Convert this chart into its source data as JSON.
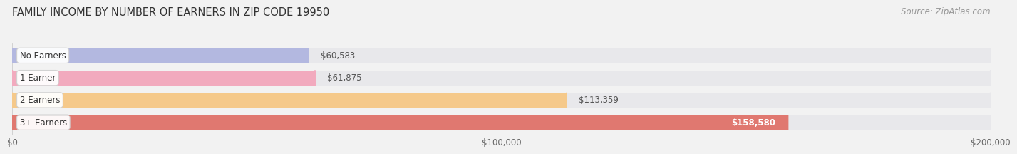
{
  "title": "FAMILY INCOME BY NUMBER OF EARNERS IN ZIP CODE 19950",
  "source": "Source: ZipAtlas.com",
  "categories": [
    "No Earners",
    "1 Earner",
    "2 Earners",
    "3+ Earners"
  ],
  "values": [
    60583,
    61875,
    113359,
    158580
  ],
  "bar_colors": [
    "#b3b8e0",
    "#f2aabe",
    "#f5c98a",
    "#e07870"
  ],
  "bar_bg_color": "#e8e8eb",
  "label_colors": [
    "#444444",
    "#444444",
    "#444444",
    "#ffffff"
  ],
  "value_labels": [
    "$60,583",
    "$61,875",
    "$113,359",
    "$158,580"
  ],
  "value_inside": [
    false,
    false,
    false,
    true
  ],
  "x_max": 200000,
  "x_ticks": [
    0,
    100000,
    200000
  ],
  "x_tick_labels": [
    "$0",
    "$100,000",
    "$200,000"
  ],
  "bg_color": "#f2f2f2",
  "title_fontsize": 10.5,
  "source_fontsize": 8.5,
  "label_fontsize": 8.5,
  "value_fontsize": 8.5,
  "tick_fontsize": 8.5,
  "bar_height": 0.68,
  "bar_gap": 1.0
}
